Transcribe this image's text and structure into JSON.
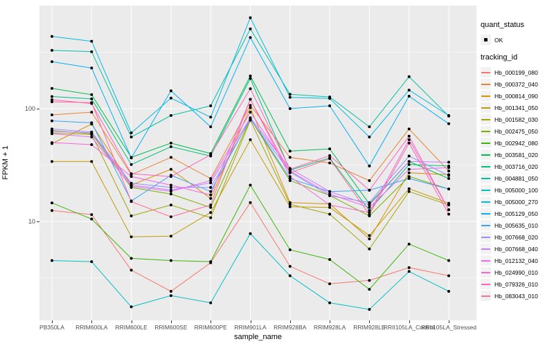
{
  "chart_data": {
    "type": "line",
    "title": "",
    "xlabel": "sample_name",
    "ylabel": "FPKM + 1",
    "y_scale": "log10",
    "y_tick_labels": [
      "100",
      "10"
    ],
    "y_tick_values": [
      100,
      10
    ],
    "y_minor_gridline_values": [
      316.2,
      31.62,
      3.162
    ],
    "ylim": [
      1.3,
      820
    ],
    "grid": "on",
    "panel_background": "#EBEBEB",
    "gridline_color": "#FFFFFF",
    "point_color": "#000000",
    "legend_position": "right",
    "legend": {
      "quant_status_title": "quant_status",
      "quant_status_items": [
        "OK"
      ],
      "tracking_id_title": "tracking_id"
    },
    "categories": [
      "PB350LA",
      "RRIM600LA",
      "RRIM600LE",
      "RRIM600SE",
      "RRIM600PE",
      "RRIM901LA",
      "RRIM928BA",
      "RRIM928LA",
      "RRIM928LE",
      "RRII105LA_Control",
      "RRII105LA_Stressed"
    ],
    "series": [
      {
        "name": "Hb_000199_080",
        "color": "#F8766D",
        "values": [
          12.5,
          11.5,
          3.7,
          2.4,
          4.3,
          14.7,
          4.0,
          2.8,
          3.0,
          3.9,
          3.3
        ]
      },
      {
        "name": "Hb_000372_040",
        "color": "#EA8331",
        "values": [
          88,
          93,
          26,
          37,
          24,
          107,
          37,
          33,
          23,
          66,
          28
        ]
      },
      {
        "name": "Hb_000814_090",
        "color": "#D89000",
        "values": [
          49,
          73,
          21,
          29,
          16,
          102,
          14.7,
          14.3,
          7.0,
          27,
          26
        ]
      },
      {
        "name": "Hb_001341_050",
        "color": "#C09B00",
        "values": [
          34,
          34,
          7.3,
          7.4,
          12,
          53,
          13.5,
          13.3,
          7.5,
          19.5,
          14.5
        ]
      },
      {
        "name": "Hb_001582_030",
        "color": "#A3A500",
        "values": [
          61,
          59,
          11.2,
          14,
          10.8,
          79,
          14.2,
          11.6,
          5.7,
          18.4,
          14
        ]
      },
      {
        "name": "Hb_002475_050",
        "color": "#7CAE00",
        "values": [
          64,
          60,
          20,
          17.5,
          13.3,
          81,
          23,
          17,
          11.2,
          25,
          19.4
        ]
      },
      {
        "name": "Hb_002942_080",
        "color": "#39B600",
        "values": [
          14.6,
          10.5,
          4.7,
          4.5,
          4.4,
          21,
          5.6,
          4.6,
          2.5,
          6.3,
          4.5
        ]
      },
      {
        "name": "Hb_003581_020",
        "color": "#00BB4E",
        "values": [
          151,
          133,
          37,
          49.5,
          40,
          195,
          42,
          44,
          14.3,
          34,
          24
        ]
      },
      {
        "name": "Hb_003716_020",
        "color": "#00BF7D",
        "values": [
          128,
          122,
          32,
          46,
          38,
          185,
          28.5,
          36.6,
          12.5,
          32,
          31
        ]
      },
      {
        "name": "Hb_004881_050",
        "color": "#00C1A3",
        "values": [
          329,
          320,
          56,
          87,
          106,
          509,
          134,
          127,
          69,
          192,
          86
        ]
      },
      {
        "name": "Hb_005000_100",
        "color": "#00BFC4",
        "values": [
          4.5,
          4.4,
          1.75,
          2.2,
          1.9,
          7.8,
          3.3,
          1.9,
          1.66,
          3.6,
          2.4
        ]
      },
      {
        "name": "Hb_005000_270",
        "color": "#00BAE0",
        "values": [
          437,
          396,
          61,
          124,
          84,
          640,
          126,
          123,
          56,
          146,
          87
        ]
      },
      {
        "name": "Hb_005129_050",
        "color": "#00B0F6",
        "values": [
          261,
          229,
          36.6,
          144,
          69,
          427,
          100,
          106,
          31,
          129,
          73.5
        ]
      },
      {
        "name": "Hb_005635_010",
        "color": "#35A2FF",
        "values": [
          78,
          75,
          15.2,
          25.7,
          18.4,
          82,
          24,
          18.4,
          18.9,
          24,
          19.4
        ]
      },
      {
        "name": "Hb_007668_020",
        "color": "#9590FF",
        "values": [
          66,
          62,
          21.8,
          20,
          20,
          80,
          27.5,
          16.9,
          14.7,
          38,
          25.5
        ]
      },
      {
        "name": "Hb_007668_040",
        "color": "#C77CFF",
        "values": [
          63,
          61,
          21,
          19,
          22,
          83,
          29.5,
          18.4,
          14,
          34,
          33.5
        ]
      },
      {
        "name": "Hb_012132_040",
        "color": "#E76BF3",
        "values": [
          60,
          56,
          20.5,
          18.5,
          23,
          93,
          28,
          17.5,
          13.3,
          29,
          30
        ]
      },
      {
        "name": "Hb_024990_010",
        "color": "#FA62DB",
        "values": [
          50,
          48,
          25,
          21,
          17.2,
          121,
          25,
          14,
          12,
          53,
          12.7
        ]
      },
      {
        "name": "Hb_079326_010",
        "color": "#FF62BC",
        "values": [
          120,
          111,
          26.5,
          25,
          39,
          150,
          29,
          38.3,
          18.9,
          57,
          12.7
        ]
      },
      {
        "name": "Hb_083043_010",
        "color": "#FF6A98",
        "values": [
          115,
          113,
          15,
          11,
          14,
          121,
          27,
          36,
          11.5,
          49.5,
          11.6
        ]
      }
    ]
  }
}
